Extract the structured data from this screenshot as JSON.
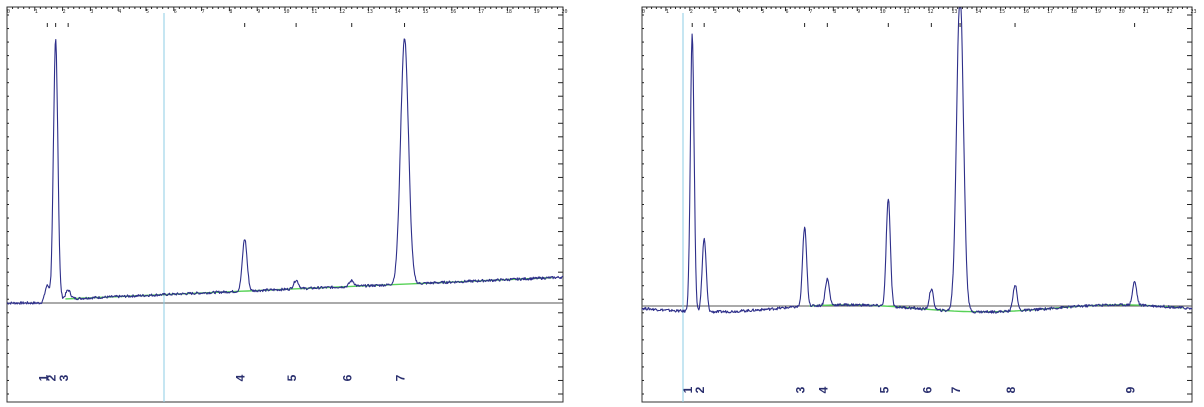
{
  "colors": {
    "trace": "#2e2f8a",
    "baseline_fit": "#57d257",
    "cursor": "#8ecde6",
    "zero_line": "#555555",
    "peak_label": "#2a2f6e"
  },
  "chart_data": [
    {
      "type": "line",
      "panel": "left",
      "x_range": [
        0,
        20
      ],
      "y_range": [
        -10,
        100
      ],
      "x_ticks": [
        "0",
        "1",
        "2",
        "3",
        "4",
        "5",
        "6",
        "7",
        "8",
        "9",
        "10",
        "11",
        "12",
        "13",
        "14",
        "15",
        "16",
        "17",
        "18",
        "19",
        "20"
      ],
      "zero_line": true,
      "cursor_line": true,
      "peak_labels": [
        "1",
        "2",
        "3",
        "4",
        "5",
        "6",
        "7"
      ],
      "peaks": [
        {
          "label": "1",
          "x": 1.45,
          "height": 6
        },
        {
          "label": "2",
          "x": 1.75,
          "height": 90
        },
        {
          "label": "3",
          "x": 2.2,
          "height": 3
        },
        {
          "label": "4",
          "x": 8.55,
          "height": 18
        },
        {
          "label": "5",
          "x": 10.4,
          "height": 3
        },
        {
          "label": "6",
          "x": 12.4,
          "height": 2
        },
        {
          "label": "7",
          "x": 14.3,
          "height": 85
        }
      ]
    },
    {
      "type": "line",
      "panel": "right",
      "x_range": [
        0,
        23
      ],
      "y_range": [
        -25,
        100
      ],
      "x_ticks": [
        "0",
        "1",
        "2",
        "3",
        "4",
        "5",
        "6",
        "7",
        "8",
        "9",
        "10",
        "11",
        "12",
        "13",
        "14",
        "15",
        "16",
        "17",
        "18",
        "19",
        "20",
        "21",
        "22",
        "23"
      ],
      "zero_line": true,
      "cursor_line": true,
      "peak_labels": [
        "1",
        "2",
        "3",
        "4",
        "5",
        "6",
        "7",
        "8",
        "9"
      ],
      "peaks": [
        {
          "label": "1",
          "x": 2.1,
          "height": 95
        },
        {
          "label": "2",
          "x": 2.6,
          "height": 25
        },
        {
          "label": "3",
          "x": 6.8,
          "height": 27
        },
        {
          "label": "4",
          "x": 7.75,
          "height": 9
        },
        {
          "label": "5",
          "x": 10.3,
          "height": 37
        },
        {
          "label": "6",
          "x": 12.1,
          "height": 7
        },
        {
          "label": "7",
          "x": 13.3,
          "height": 110
        },
        {
          "label": "8",
          "x": 15.6,
          "height": 9
        },
        {
          "label": "9",
          "x": 20.6,
          "height": 8
        }
      ]
    }
  ]
}
